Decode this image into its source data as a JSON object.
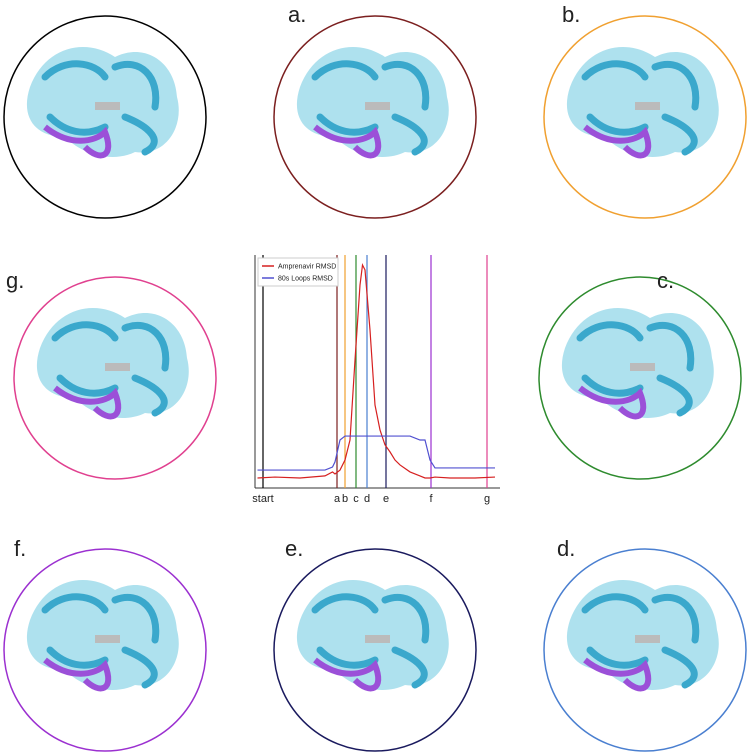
{
  "panels": [
    {
      "color": "#000000"
    },
    {
      "label": "a.",
      "color": "#7b1f1f"
    },
    {
      "label": "b.",
      "color": "#f0a030"
    },
    {
      "label": "g.",
      "color": "#e0408f"
    },
    {
      "label": "c.",
      "color": "#2e8b2e"
    },
    {
      "label": "f.",
      "color": "#9b30d0"
    },
    {
      "label": "e.",
      "color": "#1a1a5e"
    },
    {
      "label": "d.",
      "color": "#4a7fd0"
    }
  ],
  "chart_data": {
    "type": "line",
    "x": [
      3,
      10,
      20,
      30,
      33,
      34,
      36,
      38,
      40,
      42,
      44,
      45,
      46,
      47,
      48,
      50,
      52,
      54,
      56,
      58,
      60,
      64,
      68,
      70,
      72,
      74,
      80,
      90,
      98
    ],
    "series": [
      {
        "name": "Amprenavir RMSD",
        "color": "#d62020",
        "values": [
          0.43,
          0.47,
          0.43,
          0.52,
          0.69,
          0.6,
          0.77,
          1.2,
          2.06,
          5.49,
          8.71,
          9.57,
          9.36,
          8.07,
          6.78,
          3.56,
          2.49,
          1.85,
          1.55,
          1.2,
          0.99,
          0.69,
          0.52,
          0.43,
          0.43,
          0.47,
          0.43,
          0.43,
          0.47
        ]
      },
      {
        "name": "80s Loops RMSD",
        "color": "#5050d0",
        "values": [
          0.77,
          0.77,
          0.77,
          0.77,
          0.9,
          1.12,
          2.06,
          2.23,
          2.23,
          2.23,
          2.23,
          2.23,
          2.23,
          2.23,
          2.23,
          2.23,
          2.23,
          2.23,
          2.23,
          2.23,
          2.23,
          2.23,
          2.06,
          2.06,
          1.2,
          0.86,
          0.86,
          0.86,
          0.86
        ]
      }
    ],
    "xlim": [
      0,
      100
    ],
    "ylim": [
      0,
      10
    ],
    "xticks": [
      {
        "value": 5.2,
        "label": "start"
      },
      {
        "value": 34.8,
        "label": "a"
      },
      {
        "value": 38,
        "label": "b"
      },
      {
        "value": 42.4,
        "label": "c"
      },
      {
        "value": 46.8,
        "label": "d"
      },
      {
        "value": 54.4,
        "label": "e"
      },
      {
        "value": 72.4,
        "label": "f"
      },
      {
        "value": 94.8,
        "label": "g"
      }
    ],
    "xtick_colors": [
      "#000000",
      "#7b1f1f",
      "#f0a030",
      "#2e8b2e",
      "#4a7fd0",
      "#1a1a5e",
      "#9b30d0",
      "#e0408f"
    ],
    "legend": "upper left"
  }
}
